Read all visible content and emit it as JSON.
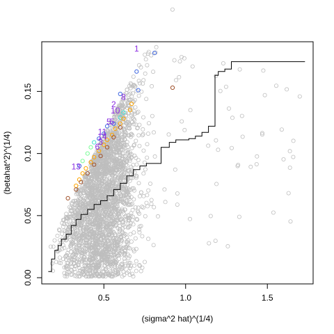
{
  "chart_data": {
    "type": "scatter",
    "title": "",
    "xlabel": "(sigma^2 hat)^(1/4)",
    "ylabel": "(betahat^2)^(1/4)",
    "xlim": [
      0.12,
      1.78
    ],
    "ylim": [
      -0.005,
      0.19
    ],
    "xticks": [
      0.5,
      1.0,
      1.5
    ],
    "xtick_labels": [
      "0.5",
      "1.0",
      "1.5"
    ],
    "yticks": [
      0.0,
      0.05,
      0.1,
      0.15
    ],
    "ytick_labels": [
      "0.00",
      "0.05",
      "0.10",
      "0.15"
    ],
    "grid": false,
    "legend": "none",
    "colors": {
      "background_points": "#bebebe",
      "step_line": "#000000",
      "blue": "#4169e1",
      "cyan": "#40e0d0",
      "green": "#7cfc98",
      "orange": "#ffa500",
      "brown": "#a0522d",
      "label": "#8a2be2"
    },
    "step_line": {
      "x": [
        0.16,
        0.18,
        0.2,
        0.22,
        0.24,
        0.27,
        0.3,
        0.33,
        0.36,
        0.4,
        0.44,
        0.48,
        0.52,
        0.56,
        0.6,
        0.64,
        0.68,
        0.72,
        0.76,
        0.8,
        0.85,
        0.9,
        0.94,
        0.98,
        1.02,
        1.06,
        1.1,
        1.14,
        1.18,
        1.2,
        1.24,
        1.28,
        1.3,
        1.4,
        1.5,
        1.6,
        1.73
      ],
      "y": [
        0.005,
        0.015,
        0.022,
        0.026,
        0.031,
        0.035,
        0.042,
        0.047,
        0.051,
        0.055,
        0.059,
        0.062,
        0.066,
        0.071,
        0.076,
        0.082,
        0.087,
        0.09,
        0.092,
        0.092,
        0.105,
        0.109,
        0.111,
        0.111,
        0.112,
        0.114,
        0.117,
        0.122,
        0.163,
        0.166,
        0.168,
        0.174,
        0.174,
        0.174,
        0.174,
        0.174,
        0.174
      ]
    },
    "highlight_points": [
      {
        "x": 0.81,
        "y": 0.181,
        "color": "blue"
      },
      {
        "x": 0.7,
        "y": 0.166,
        "color": "blue"
      },
      {
        "x": 0.71,
        "y": 0.151,
        "color": "blue"
      },
      {
        "x": 0.92,
        "y": 0.153,
        "color": "brown"
      },
      {
        "x": 0.6,
        "y": 0.148,
        "color": "blue"
      },
      {
        "x": 0.67,
        "y": 0.14,
        "color": "orange"
      },
      {
        "x": 0.66,
        "y": 0.135,
        "color": "orange"
      },
      {
        "x": 0.62,
        "y": 0.133,
        "color": "cyan"
      },
      {
        "x": 0.6,
        "y": 0.129,
        "color": "cyan"
      },
      {
        "x": 0.56,
        "y": 0.124,
        "color": "blue"
      },
      {
        "x": 0.52,
        "y": 0.122,
        "color": "blue"
      },
      {
        "x": 0.5,
        "y": 0.116,
        "color": "blue"
      },
      {
        "x": 0.47,
        "y": 0.112,
        "color": "blue"
      },
      {
        "x": 0.44,
        "y": 0.109,
        "color": "cyan"
      },
      {
        "x": 0.42,
        "y": 0.105,
        "color": "green"
      },
      {
        "x": 0.4,
        "y": 0.1,
        "color": "green"
      },
      {
        "x": 0.37,
        "y": 0.094,
        "color": "green"
      },
      {
        "x": 0.35,
        "y": 0.09,
        "color": "blue"
      },
      {
        "x": 0.62,
        "y": 0.128,
        "color": "orange"
      },
      {
        "x": 0.6,
        "y": 0.124,
        "color": "orange"
      },
      {
        "x": 0.57,
        "y": 0.12,
        "color": "orange"
      },
      {
        "x": 0.55,
        "y": 0.115,
        "color": "orange"
      },
      {
        "x": 0.52,
        "y": 0.111,
        "color": "orange"
      },
      {
        "x": 0.5,
        "y": 0.107,
        "color": "orange"
      },
      {
        "x": 0.47,
        "y": 0.102,
        "color": "orange"
      },
      {
        "x": 0.44,
        "y": 0.097,
        "color": "orange"
      },
      {
        "x": 0.42,
        "y": 0.093,
        "color": "orange"
      },
      {
        "x": 0.39,
        "y": 0.088,
        "color": "orange"
      },
      {
        "x": 0.37,
        "y": 0.084,
        "color": "orange"
      },
      {
        "x": 0.35,
        "y": 0.079,
        "color": "orange"
      },
      {
        "x": 0.33,
        "y": 0.074,
        "color": "orange"
      },
      {
        "x": 0.6,
        "y": 0.121,
        "color": "brown"
      },
      {
        "x": 0.56,
        "y": 0.113,
        "color": "brown"
      },
      {
        "x": 0.52,
        "y": 0.105,
        "color": "brown"
      },
      {
        "x": 0.48,
        "y": 0.098,
        "color": "brown"
      },
      {
        "x": 0.44,
        "y": 0.091,
        "color": "brown"
      },
      {
        "x": 0.4,
        "y": 0.084,
        "color": "brown"
      },
      {
        "x": 0.36,
        "y": 0.077,
        "color": "brown"
      },
      {
        "x": 0.33,
        "y": 0.071,
        "color": "brown"
      },
      {
        "x": 0.28,
        "y": 0.064,
        "color": "brown"
      }
    ],
    "point_labels": [
      {
        "text": "1",
        "x": 0.7,
        "y": 0.184
      },
      {
        "text": "8",
        "x": 0.62,
        "y": 0.145
      },
      {
        "text": "2",
        "x": 0.56,
        "y": 0.139
      },
      {
        "text": "10",
        "x": 0.57,
        "y": 0.134
      },
      {
        "text": "5",
        "x": 0.53,
        "y": 0.125
      },
      {
        "text": "5",
        "x": 0.55,
        "y": 0.125
      },
      {
        "text": "11",
        "x": 0.49,
        "y": 0.117
      },
      {
        "text": "14",
        "x": 0.49,
        "y": 0.113
      },
      {
        "text": "3",
        "x": 0.48,
        "y": 0.109
      },
      {
        "text": "6",
        "x": 0.46,
        "y": 0.105
      },
      {
        "text": "13",
        "x": 0.33,
        "y": 0.089
      }
    ]
  }
}
